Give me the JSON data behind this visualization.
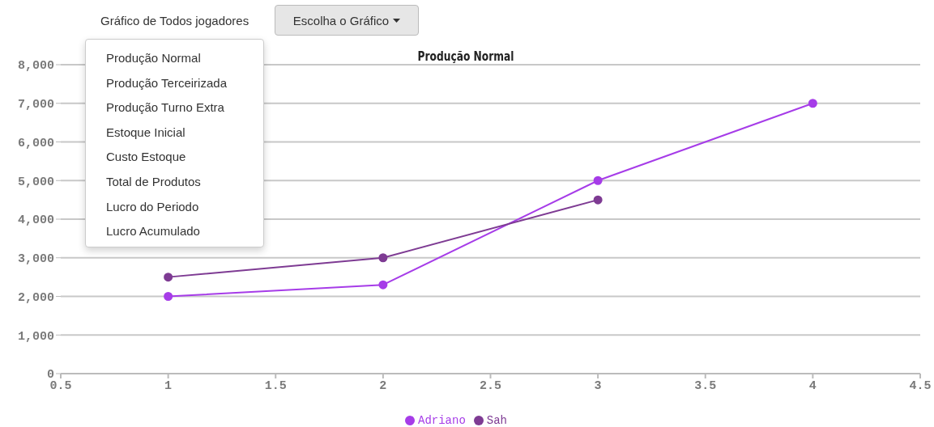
{
  "chart_data": {
    "type": "line",
    "title": "Produção Normal",
    "annotations": [
      "Gráfico de Todos jogadores",
      "Escolha o Gráfico",
      "Produção Normal",
      "Produção Terceirizada",
      "Produção Turno Extra",
      "Estoque Inicial",
      "Custo Estoque",
      "Total de Produtos",
      "Lucro do Periodo",
      "Lucro Acumulado"
    ],
    "series": [
      {
        "name": "Adriano",
        "color": "#a63ce8",
        "x": [
          1,
          2,
          3,
          4
        ],
        "values": [
          2000,
          2300,
          5000,
          7000
        ]
      },
      {
        "name": "Sah",
        "color": "#7e3b93",
        "x": [
          1,
          2,
          3
        ],
        "values": [
          2500,
          3000,
          4500
        ]
      }
    ],
    "xlim": [
      0.5,
      4.5
    ],
    "xticks": [
      0.5,
      1,
      1.5,
      2,
      2.5,
      3,
      3.5,
      4,
      4.5
    ],
    "ylim": [
      0,
      8000
    ],
    "yticks": [
      {
        "value": 0,
        "label": "0"
      },
      {
        "value": 1000,
        "label": "1,000"
      },
      {
        "value": 2000,
        "label": "2,000"
      },
      {
        "value": 3000,
        "label": "3,000"
      },
      {
        "value": 4000,
        "label": "4,000"
      },
      {
        "value": 5000,
        "label": "5,000"
      },
      {
        "value": 6000,
        "label": "6,000"
      },
      {
        "value": 7000,
        "label": "7,000"
      },
      {
        "value": 8000,
        "label": "8,000"
      }
    ],
    "grid": "y",
    "legend": "bottom",
    "marker": "circle",
    "line_style": "solid"
  }
}
